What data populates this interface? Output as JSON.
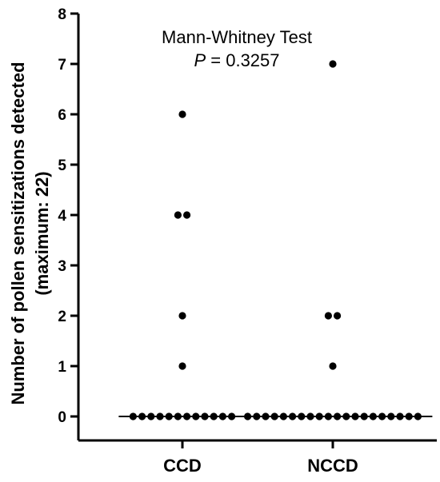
{
  "chart_data": {
    "type": "scatter",
    "title": "",
    "xlabel": "",
    "ylabel_line1": "Number of pollen sensitizations detected",
    "ylabel_line2": "(maximum: 22)",
    "ylim": [
      0,
      8
    ],
    "yticks": [
      0,
      1,
      2,
      3,
      4,
      5,
      6,
      7,
      8
    ],
    "categories": [
      "CCD",
      "NCCD"
    ],
    "annotation_line1": "Mann-Whitney Test",
    "annotation_p_symbol": "P",
    "annotation_p_value": " = 0.3257",
    "dot_color": "#000000",
    "series": [
      {
        "name": "CCD",
        "values": [
          0,
          0,
          0,
          0,
          0,
          0,
          0,
          0,
          0,
          0,
          0,
          0,
          1,
          2,
          4,
          4,
          6
        ],
        "median": 0
      },
      {
        "name": "NCCD",
        "values": [
          0,
          0,
          0,
          0,
          0,
          0,
          0,
          0,
          0,
          0,
          0,
          0,
          0,
          0,
          0,
          0,
          0,
          0,
          0,
          0,
          1,
          2,
          2,
          7
        ],
        "median": 0
      }
    ]
  }
}
